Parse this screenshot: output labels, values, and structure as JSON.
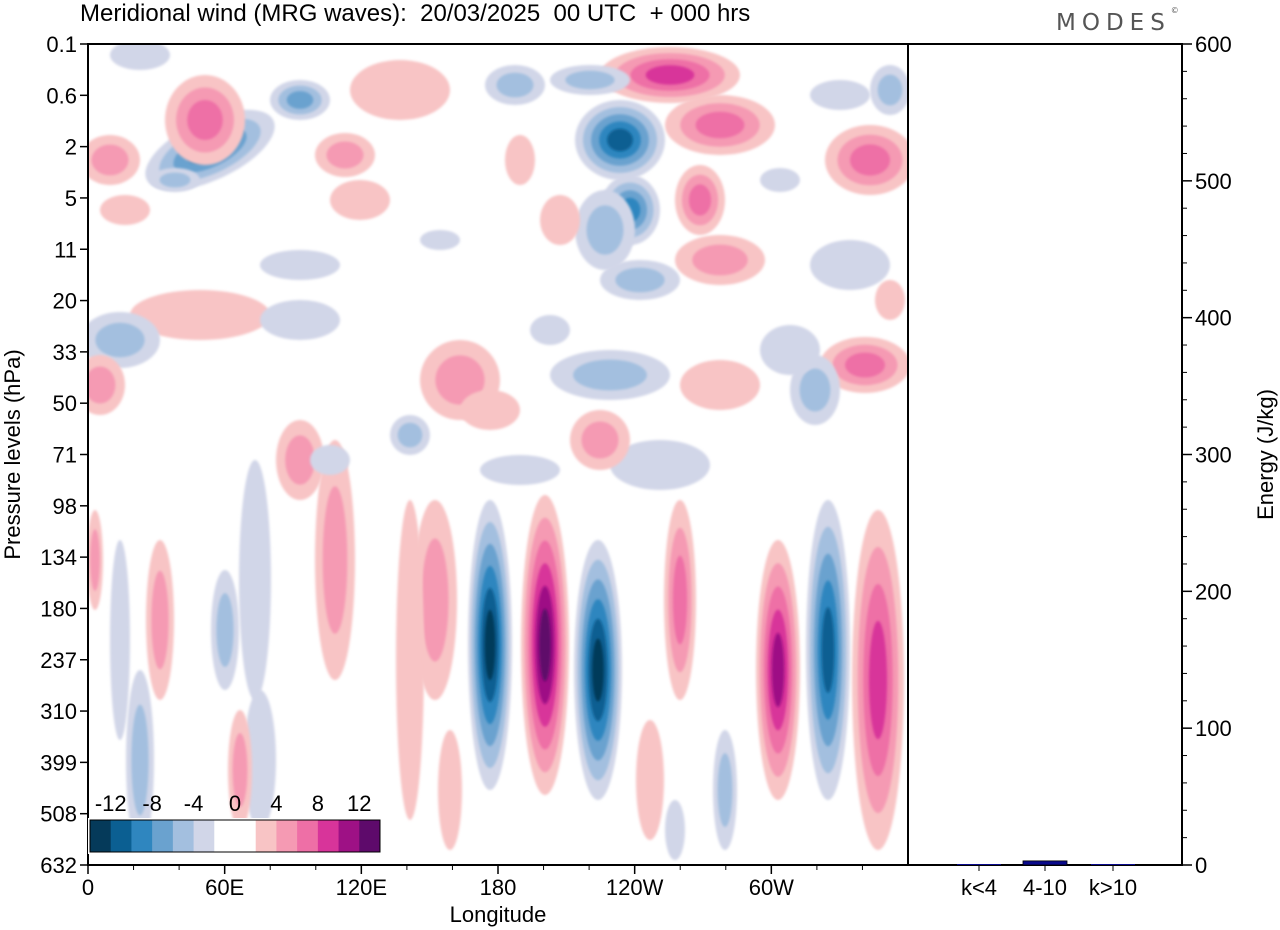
{
  "title": "Meridional wind (MRG waves):  20/03/2025  00 UTC  + 000 hrs",
  "logo": "MODES",
  "chart_data": [
    {
      "type": "heatmap",
      "title": "Meridional wind (MRG waves)",
      "xlabel": "Longitude",
      "ylabel": "Pressure levels (hPa)",
      "x_ticks": [
        "0",
        "60E",
        "120E",
        "180",
        "120W",
        "60W"
      ],
      "x_tick_degrees": [
        0,
        60,
        120,
        180,
        240,
        300
      ],
      "xlim": [
        0,
        360
      ],
      "y_ticks": [
        "0.1",
        "0.6",
        "2",
        "5",
        "11",
        "20",
        "33",
        "50",
        "71",
        "98",
        "134",
        "180",
        "237",
        "310",
        "399",
        "508",
        "632"
      ],
      "colorbar_labels": [
        "-12",
        "-8",
        "-4",
        "0",
        "4",
        "8",
        "12"
      ],
      "colorbar_colors": [
        "#053a5a",
        "#0b5f92",
        "#2f86bf",
        "#6aa2cf",
        "#a3bfdf",
        "#d1d6e8",
        "#ffffff",
        "#ffffff",
        "#f8c4c5",
        "#f59ab3",
        "#ee6fa6",
        "#d8349a",
        "#9e1185",
        "#5e0a6b"
      ],
      "features": [
        {
          "lon": 175,
          "level": "237",
          "value": -14
        },
        {
          "lon": 197,
          "level": "237",
          "value": 14
        },
        {
          "lon": 220,
          "level": "237",
          "value": -14
        },
        {
          "lon": 300,
          "level": "237",
          "value": 12
        },
        {
          "lon": 325,
          "level": "180",
          "value": -12
        },
        {
          "lon": 350,
          "level": "180",
          "value": 8
        },
        {
          "lon": 233,
          "level": "2",
          "value": -11
        },
        {
          "lon": 240,
          "level": "5",
          "value": -9
        },
        {
          "lon": 275,
          "level": "0.6",
          "value": 10
        },
        {
          "lon": 75,
          "level": "2",
          "value": -9
        }
      ]
    },
    {
      "type": "bar",
      "ylabel": "Energy (J/kg)",
      "categories": [
        "k<4",
        "4-10",
        "k>10"
      ],
      "values": [
        0,
        3,
        0
      ],
      "ylim": [
        0,
        600
      ],
      "y_ticks": [
        "0",
        "100",
        "200",
        "300",
        "400",
        "500",
        "600"
      ],
      "bar_color": "#0a0a8c"
    }
  ]
}
